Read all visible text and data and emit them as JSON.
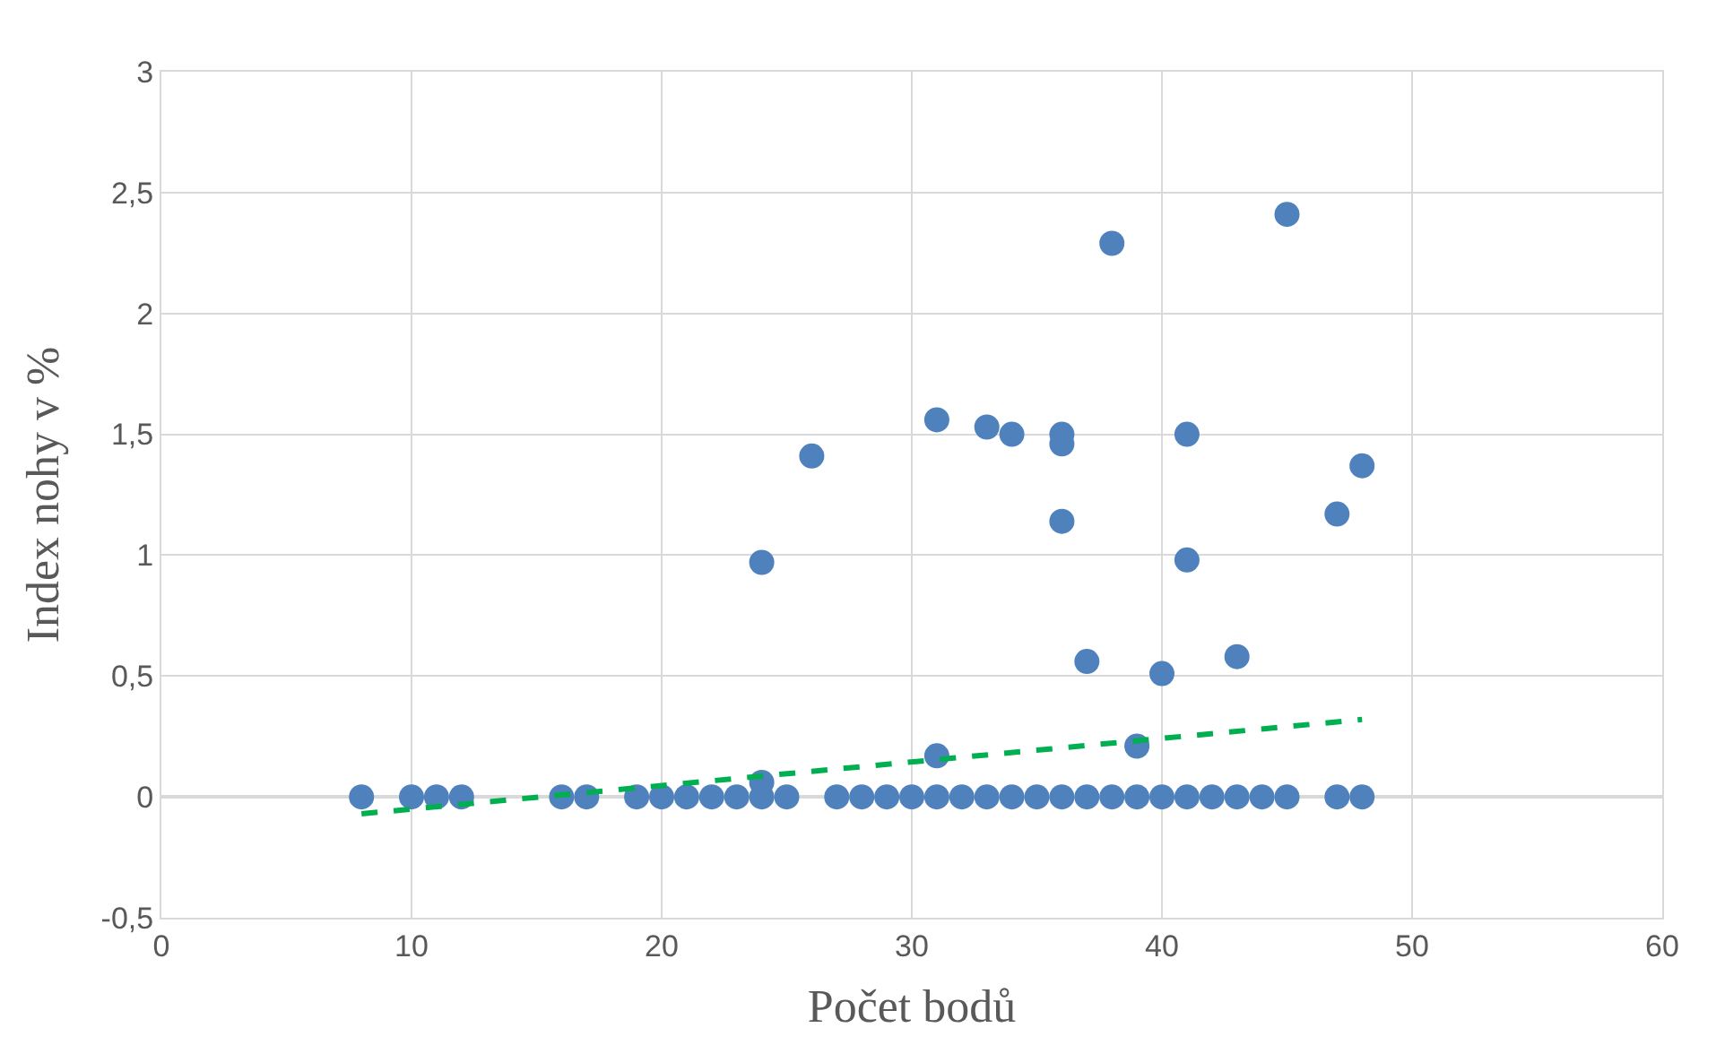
{
  "chart_data": {
    "type": "scatter",
    "xlabel": "Počet bodů",
    "ylabel": "Index nohy v %",
    "xlim": [
      0,
      60
    ],
    "xticks": [
      0,
      10,
      20,
      30,
      40,
      50,
      60
    ],
    "ylim": [
      -0.5,
      3
    ],
    "yticks": [
      {
        "value": -0.5,
        "label": "-0,5"
      },
      0,
      {
        "value": 0.5,
        "label": "0,5"
      },
      1,
      {
        "value": 1.5,
        "label": "1,5"
      },
      2,
      {
        "value": 2.5,
        "label": "2,5"
      },
      3
    ],
    "grid": true,
    "marker": "circle",
    "series": [
      {
        "color": "#4f81bd",
        "x": [
          8,
          10,
          11,
          12,
          16,
          17,
          19,
          20,
          21,
          22,
          23,
          24,
          25,
          27,
          28,
          29,
          30,
          31,
          32,
          33,
          34,
          35,
          36,
          37,
          38,
          39,
          40,
          41,
          42,
          43,
          44,
          45,
          47,
          48,
          24,
          24,
          26,
          31,
          31,
          33,
          34,
          36,
          36,
          36,
          37,
          38,
          39,
          40,
          41,
          41,
          43,
          45,
          47,
          48
        ],
        "values": [
          0,
          0,
          0,
          0,
          0,
          0,
          0,
          0,
          0,
          0,
          0,
          0,
          0,
          0,
          0,
          0,
          0,
          0,
          0,
          0,
          0,
          0,
          0,
          0,
          0,
          0,
          0,
          0,
          0,
          0,
          0,
          0,
          0,
          0,
          0.97,
          0.06,
          1.41,
          1.56,
          0.17,
          1.53,
          1.5,
          1.5,
          1.46,
          1.14,
          0.56,
          2.29,
          0.21,
          0.51,
          1.5,
          0.98,
          0.58,
          2.41,
          1.17,
          1.37
        ]
      },
      {
        "type": "line",
        "color": "#00b050",
        "line_style": "dashed",
        "marker": "none",
        "x": [
          8,
          48
        ],
        "values": [
          -0.07,
          0.32
        ]
      }
    ]
  }
}
